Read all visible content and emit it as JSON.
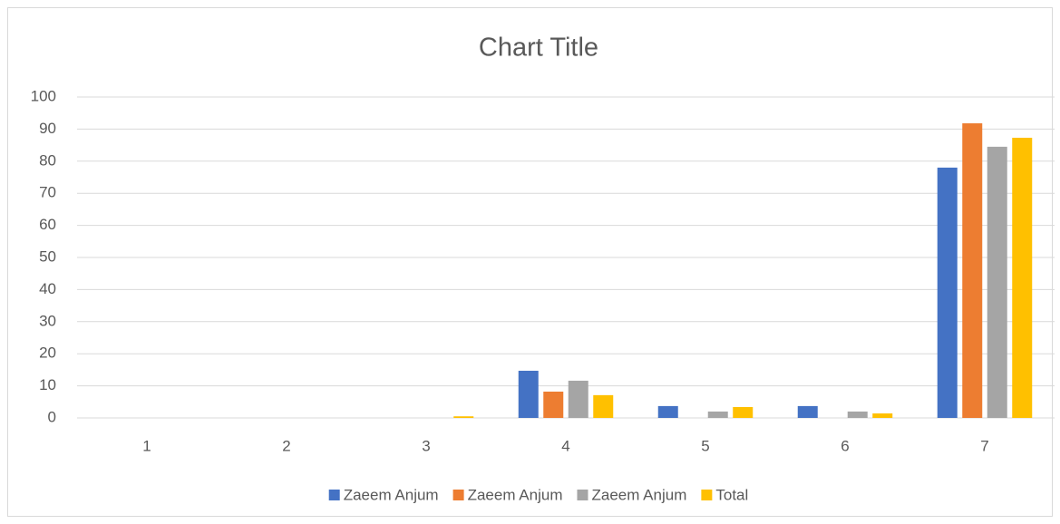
{
  "chart_data": {
    "type": "bar",
    "title": "Chart Title",
    "categories": [
      "1",
      "2",
      "3",
      "4",
      "5",
      "6",
      "7"
    ],
    "series": [
      {
        "name": "Zaeem Anjum",
        "color": "#4472c4",
        "values": [
          0,
          0,
          0,
          14.7,
          3.7,
          3.7,
          78
        ]
      },
      {
        "name": "Zaeem Anjum",
        "color": "#ed7d31",
        "values": [
          0,
          0,
          0,
          8.2,
          0,
          0,
          91.8
        ]
      },
      {
        "name": "Zaeem Anjum",
        "color": "#a5a5a5",
        "values": [
          0,
          0,
          0,
          11.6,
          2.0,
          2.0,
          84.5
        ]
      },
      {
        "name": "Total",
        "color": "#ffc000",
        "values": [
          0,
          0,
          0.5,
          7.1,
          3.4,
          1.4,
          87.3
        ]
      }
    ],
    "ylim": [
      0,
      100
    ],
    "yticks": [
      0,
      10,
      20,
      30,
      40,
      50,
      60,
      70,
      80,
      90,
      100
    ],
    "grid": true,
    "legend": "bottom"
  }
}
